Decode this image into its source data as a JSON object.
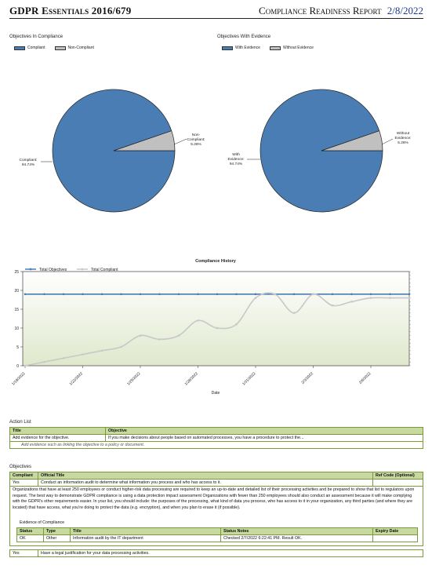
{
  "header": {
    "left": "GDPR Essentials 2016/679",
    "right": "Compliance Readiness Report",
    "date": "2/8/2022"
  },
  "colors": {
    "blue": "#4a7db4",
    "gray": "#c0c0c0",
    "green_head": "#c7d9a0"
  },
  "chart_data": [
    {
      "type": "pie",
      "title": "Objectives In Compliance",
      "legend": [
        "Compliant",
        "Non-Compliant"
      ],
      "slices": [
        {
          "name": "Compliant",
          "value": 94.74,
          "label": "Compliant: 94.74%",
          "color": "#4a7db4"
        },
        {
          "name": "Non-Compliant",
          "value": 5.26,
          "label": "Non-Compliant: 5.26%",
          "color": "#c0c0c0"
        }
      ]
    },
    {
      "type": "pie",
      "title": "Objectives With Evidence",
      "legend": [
        "With Evidence",
        "Without Evidence"
      ],
      "slices": [
        {
          "name": "With Evidence",
          "value": 94.74,
          "label": "With Evidence: 94.74%",
          "color": "#4a7db4"
        },
        {
          "name": "Without Evidence",
          "value": 5.26,
          "label": "Without Evidence: 5.26%",
          "color": "#c0c0c0"
        }
      ]
    },
    {
      "type": "line",
      "title": "Compliance History",
      "xlabel": "Date",
      "ylabel": "",
      "ylim": [
        0,
        25
      ],
      "yticks": [
        0,
        5,
        10,
        15,
        20,
        25
      ],
      "x_tick_labels": [
        "1/19/2022",
        "1/22/2022",
        "1/25/2022",
        "1/28/2022",
        "1/31/2022",
        "2/3/2022",
        "2/6/2022"
      ],
      "x_range": [
        "1/19/2022",
        "2/8/2022"
      ],
      "series": [
        {
          "name": "Total Objectives",
          "color": "#4a7db4",
          "points": [
            [
              "1/19/2022",
              19
            ],
            [
              "1/20/2022",
              19
            ],
            [
              "1/21/2022",
              19
            ],
            [
              "1/22/2022",
              19
            ],
            [
              "1/23/2022",
              19
            ],
            [
              "1/24/2022",
              19
            ],
            [
              "1/25/2022",
              19
            ],
            [
              "1/26/2022",
              19
            ],
            [
              "1/27/2022",
              19
            ],
            [
              "1/28/2022",
              19
            ],
            [
              "1/29/2022",
              19
            ],
            [
              "1/30/2022",
              19
            ],
            [
              "1/31/2022",
              19
            ],
            [
              "2/1/2022",
              19
            ],
            [
              "2/2/2022",
              19
            ],
            [
              "2/3/2022",
              19
            ],
            [
              "2/4/2022",
              19
            ],
            [
              "2/5/2022",
              19
            ],
            [
              "2/6/2022",
              19
            ],
            [
              "2/7/2022",
              19
            ],
            [
              "2/8/2022",
              19
            ]
          ]
        },
        {
          "name": "Total Compliant",
          "color": "#c8c8c8",
          "points": [
            [
              "1/19/2022",
              0
            ],
            [
              "1/20/2022",
              1
            ],
            [
              "1/21/2022",
              2
            ],
            [
              "1/22/2022",
              3
            ],
            [
              "1/23/2022",
              4
            ],
            [
              "1/24/2022",
              5
            ],
            [
              "1/25/2022",
              8
            ],
            [
              "1/26/2022",
              7
            ],
            [
              "1/27/2022",
              8
            ],
            [
              "1/28/2022",
              12
            ],
            [
              "1/29/2022",
              10
            ],
            [
              "1/30/2022",
              11
            ],
            [
              "1/31/2022",
              18
            ],
            [
              "2/1/2022",
              19
            ],
            [
              "2/2/2022",
              14
            ],
            [
              "2/3/2022",
              19
            ],
            [
              "2/4/2022",
              16
            ],
            [
              "2/5/2022",
              17
            ],
            [
              "2/6/2022",
              18
            ],
            [
              "2/7/2022",
              18
            ],
            [
              "2/8/2022",
              18
            ]
          ]
        }
      ]
    }
  ],
  "action_list": {
    "title": "Action List",
    "col_title": "Title",
    "col_objective": "Objective",
    "rows": [
      {
        "title": "Add evidence for the objective.",
        "objective": "If you make decisions about people based on automated processes, you have a procedure to protect the...",
        "hint": "Add evidence such as linking the objective to a policy or document."
      }
    ]
  },
  "objectives": {
    "title": "Objectives",
    "col_compliant": "Compliant",
    "col_title": "Official Title",
    "col_ref": "Ref Code (Optional)",
    "rows": [
      {
        "compliant": "Yes",
        "title": "Conduct an information audit to determine what information you process and who has access to it.",
        "ref": "",
        "description": "Organizations that have at least 250 employees or conduct higher-risk data processing are required to keep an up-to-date and detailed list of their processing activities and be prepared to show that list to regulators upon request. The best way to demonstrate GDPR compliance is using a data protection impact assessment Organizations with fewer than 250 employees should also conduct an assessment because it will make complying with the GDPR's other requirements easier. In your list, you should include: the purposes of the processing, what kind of data you process, who has access to it in your organization, any third parties (and where they are located) that have access, what you're doing to protect the data (e.g. encryption), and when you plan to erase it (if possible).",
        "evidence": {
          "title": "Evidence of Compliance",
          "headers": [
            "Status",
            "Type",
            "Title",
            "Status Notes",
            "Expiry Date"
          ],
          "rows": [
            [
              "OK",
              "Other",
              "Information audit by the IT department",
              "Checked 2/7/2022 6:22:41 PM. Result OK.",
              ""
            ]
          ]
        }
      },
      {
        "compliant": "Yes",
        "title": "Have a legal justification for your data processing activities.",
        "ref": ""
      }
    ]
  }
}
